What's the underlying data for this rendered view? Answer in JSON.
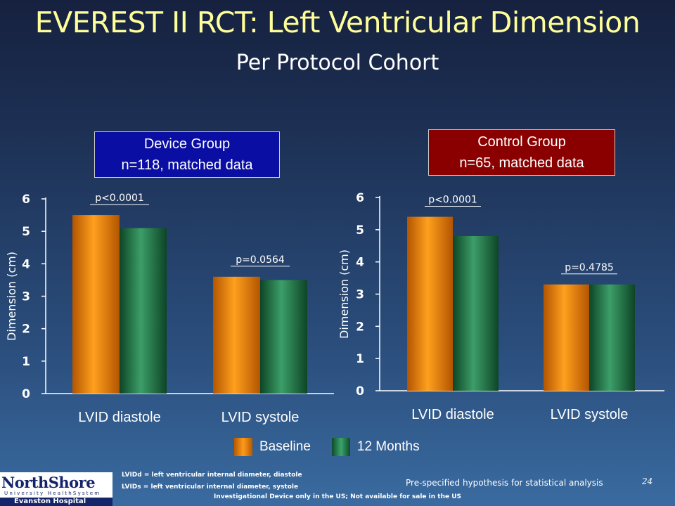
{
  "title": "EVEREST II RCT: Left Ventricular Dimension",
  "subtitle": "Per Protocol Cohort",
  "device_box": {
    "line1": "Device Group",
    "line2": "n=118, matched data"
  },
  "control_box": {
    "line1": "Control Group",
    "line2": "n=65, matched data"
  },
  "legend": {
    "baseline": "Baseline",
    "months12": "12 Months"
  },
  "footnotes": {
    "lvidd": "LVIDd = left ventricular internal diameter, diastole",
    "lvids": "LVIDs = left ventricular internal diameter, systole"
  },
  "hypothesis": "Pre-specified hypothesis for statistical analysis",
  "slide_number": "24",
  "disclaimer": "Investigational Device only in the US; Not available for sale in the US",
  "logo": {
    "main": "NorthShore",
    "sub": "University HealthSystem",
    "bar": "Evanston Hospital"
  },
  "colors": {
    "baseline": "#ff8c00",
    "months12": "#2e8b57",
    "title": "#ffff99"
  },
  "chart_data": [
    {
      "type": "bar",
      "categories": [
        "LVID diastole",
        "LVID systole"
      ],
      "series": [
        {
          "name": "Baseline",
          "values": [
            5.5,
            3.6
          ]
        },
        {
          "name": "12 Months",
          "values": [
            5.1,
            3.5
          ]
        }
      ],
      "pvalues": [
        "p<0.0001",
        "p=0.0564"
      ],
      "ylabel": "Dimension (cm)",
      "yticks": [
        0,
        1,
        2,
        3,
        4,
        5,
        6
      ],
      "ylim": [
        0,
        6
      ],
      "grid": false,
      "legend": "bottom"
    },
    {
      "type": "bar",
      "categories": [
        "LVID diastole",
        "LVID systole"
      ],
      "series": [
        {
          "name": "Baseline",
          "values": [
            5.4,
            3.3
          ]
        },
        {
          "name": "12 Months",
          "values": [
            4.8,
            3.3
          ]
        }
      ],
      "pvalues": [
        "p<0.0001",
        "p=0.4785"
      ],
      "ylabel": "Dimension (cm)",
      "yticks": [
        0,
        1,
        2,
        3,
        4,
        5,
        6
      ],
      "ylim": [
        0,
        6
      ],
      "grid": false,
      "legend": "bottom"
    }
  ]
}
